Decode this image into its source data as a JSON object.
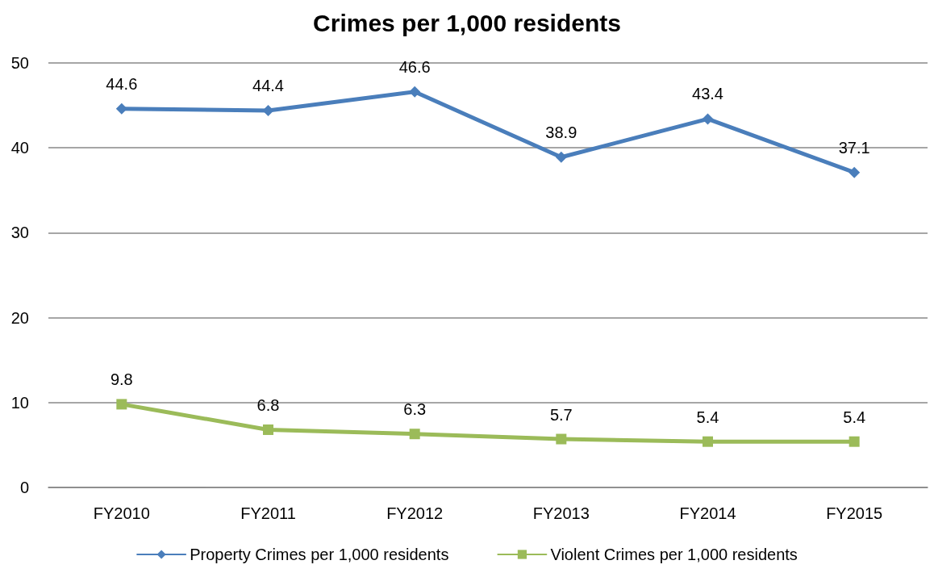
{
  "chart_data": {
    "type": "line",
    "title": "Crimes per 1,000 residents",
    "categories": [
      "FY2010",
      "FY2011",
      "FY2012",
      "FY2013",
      "FY2014",
      "FY2015"
    ],
    "series": [
      {
        "name": "Property Crimes per 1,000 residents",
        "color": "#4a7ebb",
        "marker": "diamond",
        "values": [
          44.6,
          44.4,
          46.6,
          38.9,
          43.4,
          37.1
        ]
      },
      {
        "name": "Violent Crimes per 1,000 residents",
        "color": "#9bbb59",
        "marker": "square",
        "values": [
          9.8,
          6.8,
          6.3,
          5.7,
          5.4,
          5.4
        ]
      }
    ],
    "ylim": [
      0,
      50
    ],
    "yticks": [
      0,
      10,
      20,
      30,
      40,
      50
    ],
    "grid": "y",
    "legend": "bottom",
    "data_labels": true,
    "line_style": "solid"
  }
}
